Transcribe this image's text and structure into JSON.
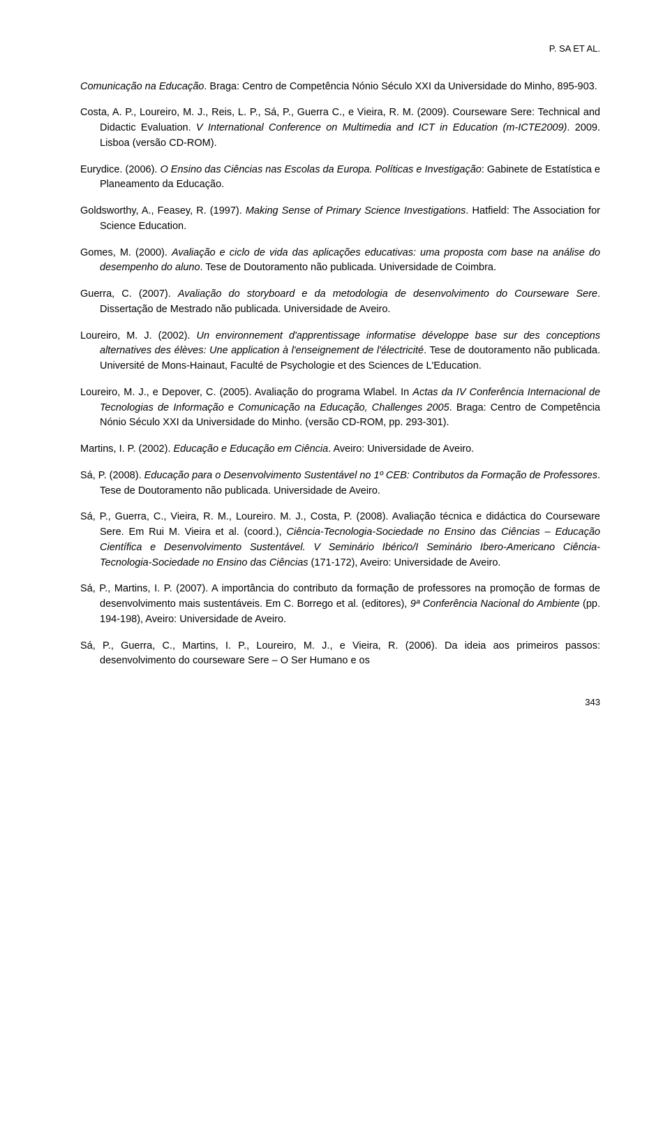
{
  "header": "P. SA ET AL.",
  "page_number": "343",
  "refs": [
    {
      "parts": [
        {
          "t": "Comunicação na Educação",
          "i": true
        },
        {
          "t": ". Braga: Centro de Competência Nónio Século XXI da Universidade do Minho, 895-903."
        }
      ]
    },
    {
      "parts": [
        {
          "t": "Costa, A. P., Loureiro, M. J., Reis, L. P., Sá, P., Guerra C., e Vieira, R. M. (2009). Courseware Sere: Technical and Didactic Evaluation. "
        },
        {
          "t": "V International Conference on Multimedia and ICT in Education (m-ICTE2009)",
          "i": true
        },
        {
          "t": ". 2009. Lisboa (versão CD-ROM)."
        }
      ]
    },
    {
      "parts": [
        {
          "t": "Eurydice. (2006). "
        },
        {
          "t": "O Ensino das Ciências nas Escolas da Europa. Políticas e Investigação",
          "i": true
        },
        {
          "t": ": Gabinete de Estatística e Planeamento da Educação."
        }
      ]
    },
    {
      "parts": [
        {
          "t": "Goldsworthy, A., Feasey, R. (1997). "
        },
        {
          "t": "Making Sense of Primary Science Investigations",
          "i": true
        },
        {
          "t": ". Hatfield: The Association for Science Education."
        }
      ]
    },
    {
      "parts": [
        {
          "t": "Gomes, M. (2000). "
        },
        {
          "t": "Avaliação e ciclo de vida das aplicações educativas: uma proposta com base na análise do desempenho do aluno",
          "i": true
        },
        {
          "t": ". Tese de Doutoramento não publicada. Universidade de Coimbra."
        }
      ]
    },
    {
      "parts": [
        {
          "t": "Guerra, C. (2007). "
        },
        {
          "t": "Avaliação do storyboard e da metodologia de desenvolvimento do Courseware Sere",
          "i": true
        },
        {
          "t": ". Dissertação de Mestrado não publicada. Universidade de Aveiro."
        }
      ]
    },
    {
      "parts": [
        {
          "t": "Loureiro, M. J. (2002). "
        },
        {
          "t": "Un environnement d'apprentissage informatise développe base sur des conceptions alternatives des élèves: Une application à l'enseignement de l'électricité",
          "i": true
        },
        {
          "t": ". Tese de doutoramento não publicada. Université de Mons-Hainaut, Faculté de Psychologie et des Sciences de L'Education."
        }
      ]
    },
    {
      "parts": [
        {
          "t": "Loureiro, M. J., e Depover, C. (2005). Avaliação do programa Wlabel. In "
        },
        {
          "t": "Actas da IV Conferência Internacional de Tecnologias de Informação e Comunicação na Educação, Challenges 2005",
          "i": true
        },
        {
          "t": ". Braga: Centro de Competência Nónio Século XXI da Universidade do Minho. (versão CD-ROM, pp. 293-301)."
        }
      ]
    },
    {
      "parts": [
        {
          "t": "Martins, I. P. (2002). "
        },
        {
          "t": "Educação e Educação em Ciência",
          "i": true
        },
        {
          "t": ". Aveiro: Universidade de Aveiro."
        }
      ]
    },
    {
      "parts": [
        {
          "t": "Sá, P. (2008). "
        },
        {
          "t": "Educação para o Desenvolvimento Sustentável no 1º CEB: Contributos da Formação de Professores",
          "i": true
        },
        {
          "t": ". Tese de Doutoramento não publicada. Universidade de Aveiro."
        }
      ]
    },
    {
      "parts": [
        {
          "t": "Sá, P., Guerra, C., Vieira, R. M., Loureiro. M. J., Costa, P. (2008). Avaliação técnica e didáctica do Courseware Sere. Em Rui M. Vieira et al. (coord.), "
        },
        {
          "t": "Ciência-Tecnologia-Sociedade no Ensino das Ciências – Educação Científica e Desenvolvimento Sustentável. V Seminário Ibérico/I Seminário Ibero-Americano Ciência-Tecnologia-Sociedade no Ensino das Ciências",
          "i": true
        },
        {
          "t": " (171-172), Aveiro: Universidade de Aveiro."
        }
      ]
    },
    {
      "parts": [
        {
          "t": "Sá, P., Martins, I. P. (2007). A importância do contributo da formação de professores na promoção de formas de desenvolvimento mais sustentáveis. Em C. Borrego et al. (editores), "
        },
        {
          "t": "9ª Conferência Nacional do Ambiente",
          "i": true
        },
        {
          "t": " (pp. 194-198), Aveiro: Universidade de Aveiro."
        }
      ]
    },
    {
      "parts": [
        {
          "t": "Sá, P., Guerra, C., Martins, I. P., Loureiro, M. J., e Vieira, R. (2006). Da ideia aos primeiros passos: desenvolvimento do courseware Sere – O Ser Humano e os"
        }
      ]
    }
  ]
}
